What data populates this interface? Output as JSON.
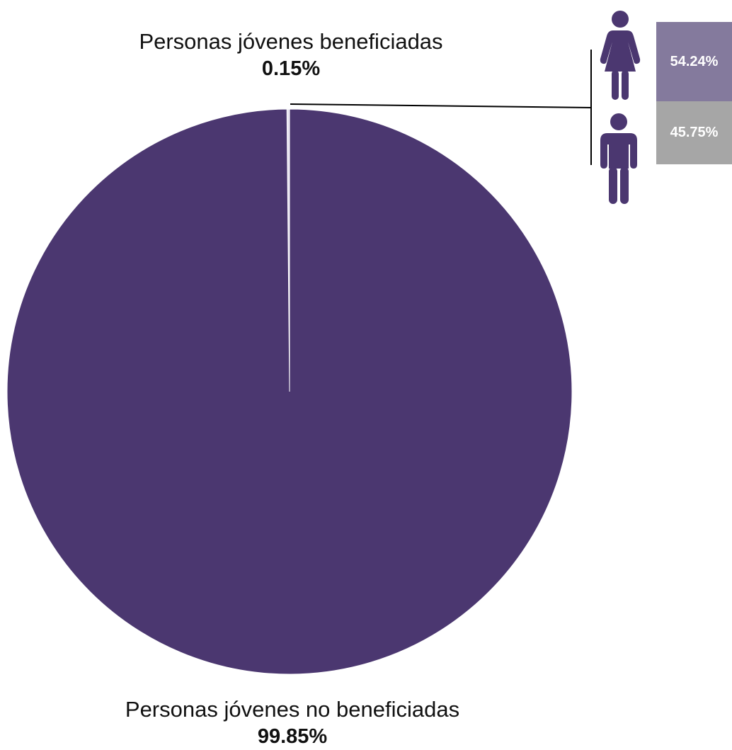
{
  "chart_data": {
    "type": "pie",
    "slices": [
      {
        "label": "Personas jóvenes beneficiadas",
        "value": 0.15,
        "value_label": "0.15%",
        "color": "#e6e1ef"
      },
      {
        "label": "Personas jóvenes no beneficiadas",
        "value": 99.85,
        "value_label": "99.85%",
        "color": "#4b3770"
      }
    ],
    "start_angle_deg": 0,
    "direction": "counterclockwise-from-top",
    "breakdown": {
      "parent": "Personas jóvenes beneficiadas",
      "items": [
        {
          "group": "mujeres",
          "icon": "woman-icon",
          "value": 54.24,
          "value_label": "54.24%",
          "color": "#847a9d"
        },
        {
          "group": "hombres",
          "icon": "man-icon",
          "value": 45.75,
          "value_label": "45.75%",
          "color": "#a6a6a6"
        }
      ]
    }
  },
  "colors": {
    "icon": "#4b3770",
    "connector": "#000000"
  }
}
